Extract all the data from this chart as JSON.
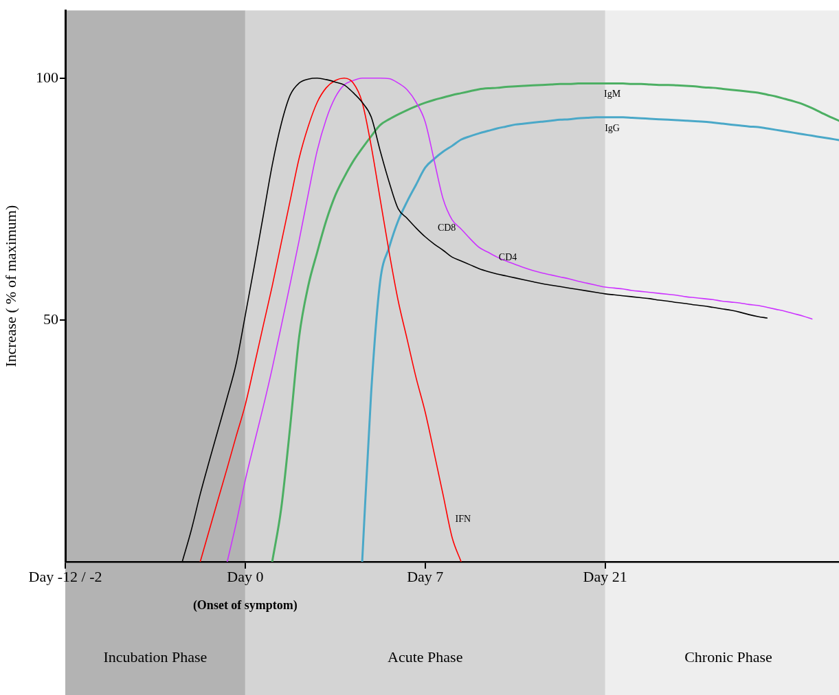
{
  "chart_data": {
    "type": "line",
    "ylabel": "Increase ( % of maximum)",
    "ylim": [
      0,
      114
    ],
    "yticks": [
      50,
      100
    ],
    "grid": false,
    "legend": false,
    "marker": "none",
    "line_style": "solid",
    "categories": [
      "Day -12 / -2",
      null,
      null,
      null,
      null,
      null,
      null,
      null,
      null,
      null,
      null,
      null,
      null,
      null,
      null,
      null,
      null,
      null,
      null,
      null,
      "Day 0",
      null,
      null,
      null,
      null,
      null,
      null,
      null,
      null,
      null,
      null,
      null,
      null,
      null,
      null,
      null,
      null,
      null,
      null,
      null,
      "Day 7",
      null,
      null,
      null,
      null,
      null,
      null,
      null,
      null,
      null,
      null,
      null,
      null,
      null,
      null,
      null,
      null,
      null,
      null,
      null,
      "Day 21",
      null,
      null,
      null,
      null,
      null,
      null,
      null,
      null,
      null,
      null,
      null,
      null,
      null,
      null,
      null,
      null,
      null,
      null,
      null,
      null,
      null,
      null,
      null,
      null,
      null,
      null
    ],
    "bands": [
      {
        "axis": "x",
        "from": "Day -12 / -2",
        "to": "Day 0",
        "label": "Incubation Phase",
        "color": "#b3b3b3"
      },
      {
        "axis": "x",
        "from": "Day 0",
        "to": "Day 21",
        "label": "Acute Phase",
        "color": "#d4d4d4"
      }
    ],
    "annotations": [
      "(Onset of symptom)",
      "CD8",
      "CD4",
      "IgM",
      "IgG",
      "IFN",
      "Chronic Phase"
    ],
    "series": [
      {
        "color": "#000000",
        "values": [
          null,
          null,
          null,
          null,
          null,
          null,
          null,
          null,
          null,
          null,
          null,
          null,
          null,
          0,
          6.5,
          14,
          20.8,
          27.4,
          34,
          41,
          50.9,
          61,
          71.5,
          82,
          90.5,
          96.5,
          99,
          99.8,
          100,
          99.7,
          99.2,
          98.6,
          97,
          95,
          92,
          85,
          78.5,
          73,
          71,
          69,
          67.2,
          65.7,
          64.4,
          63,
          62.2,
          61.4,
          60.6,
          60,
          59.5,
          59.1,
          58.7,
          58.3,
          57.9,
          57.5,
          57.2,
          56.9,
          56.6,
          56.3,
          56,
          55.7,
          55.4,
          55.2,
          55,
          54.8,
          54.6,
          54.4,
          54.1,
          53.9,
          53.6,
          53.4,
          53.1,
          52.9,
          52.6,
          52.3,
          52,
          51.6,
          51.1,
          50.7,
          50.4,
          null,
          null,
          null,
          null,
          null,
          null,
          null,
          null
        ]
      },
      {
        "color": "#ff0000",
        "values": [
          null,
          null,
          null,
          null,
          null,
          null,
          null,
          null,
          null,
          null,
          null,
          null,
          null,
          null,
          null,
          0,
          6.5,
          13,
          19.4,
          26,
          32.4,
          40.5,
          48.8,
          57,
          65.9,
          74.7,
          83.5,
          90,
          95,
          98,
          99.5,
          100,
          99,
          95,
          86,
          75,
          64,
          54,
          46,
          38,
          31,
          22.5,
          13.8,
          5,
          0,
          null,
          null,
          null,
          null,
          null,
          null,
          null,
          null,
          null,
          null,
          null,
          null,
          null,
          null,
          null,
          null,
          null,
          null,
          null,
          null,
          null,
          null,
          null,
          null,
          null,
          null,
          null,
          null,
          null,
          null,
          null,
          null,
          null,
          null,
          null,
          null,
          null,
          null,
          null,
          null,
          null,
          null
        ]
      },
      {
        "color": "#cc33ff",
        "values": [
          null,
          null,
          null,
          null,
          null,
          null,
          null,
          null,
          null,
          null,
          null,
          null,
          null,
          null,
          null,
          null,
          null,
          null,
          0,
          8,
          16.8,
          24.5,
          32,
          40,
          48.7,
          57.5,
          66.5,
          76,
          85,
          91.5,
          96,
          98.6,
          99.5,
          100,
          100,
          100,
          99.9,
          99,
          97.6,
          95,
          91,
          83,
          75,
          70.7,
          68.8,
          66.8,
          65,
          64,
          63,
          62.2,
          61.5,
          60.8,
          60.2,
          59.7,
          59.3,
          58.9,
          58.5,
          58,
          57.6,
          57.2,
          56.8,
          56.6,
          56.4,
          56.1,
          55.9,
          55.7,
          55.5,
          55.3,
          55.1,
          54.8,
          54.6,
          54.4,
          54.2,
          53.9,
          53.7,
          53.5,
          53.2,
          53,
          52.6,
          52.2,
          51.8,
          51.3,
          50.8,
          50.2,
          null,
          null,
          null
        ]
      },
      {
        "color": "#4caf63",
        "values": [
          null,
          null,
          null,
          null,
          null,
          null,
          null,
          null,
          null,
          null,
          null,
          null,
          null,
          null,
          null,
          null,
          null,
          null,
          null,
          null,
          null,
          null,
          null,
          0,
          11,
          28,
          46.6,
          57,
          64,
          70.5,
          75.7,
          79.5,
          82.8,
          85.5,
          88,
          90.3,
          91.5,
          92.5,
          93.4,
          94.2,
          94.9,
          95.5,
          96,
          96.5,
          96.9,
          97.3,
          97.7,
          97.9,
          98,
          98.2,
          98.3,
          98.4,
          98.5,
          98.6,
          98.7,
          98.8,
          98.8,
          98.9,
          98.9,
          98.9,
          98.9,
          98.9,
          98.9,
          98.8,
          98.8,
          98.7,
          98.6,
          98.6,
          98.5,
          98.4,
          98.3,
          98.1,
          98,
          97.8,
          97.6,
          97.4,
          97.2,
          97,
          96.6,
          96.2,
          95.7,
          95.2,
          94.6,
          93.8,
          92.9,
          92,
          91.2
        ]
      },
      {
        "color": "#4aa8c8",
        "values": [
          null,
          null,
          null,
          null,
          null,
          null,
          null,
          null,
          null,
          null,
          null,
          null,
          null,
          null,
          null,
          null,
          null,
          null,
          null,
          null,
          null,
          null,
          null,
          null,
          null,
          null,
          null,
          null,
          null,
          null,
          null,
          null,
          null,
          0,
          35,
          58,
          65,
          70.5,
          74.5,
          78,
          81.5,
          83.3,
          84.8,
          86,
          87.3,
          88,
          88.6,
          89.1,
          89.6,
          90,
          90.4,
          90.6,
          90.8,
          91,
          91.2,
          91.4,
          91.5,
          91.7,
          91.8,
          91.9,
          91.9,
          91.9,
          91.9,
          91.8,
          91.7,
          91.6,
          91.5,
          91.4,
          91.3,
          91.2,
          91.1,
          91,
          90.8,
          90.6,
          90.4,
          90.2,
          90,
          89.9,
          89.6,
          89.3,
          89,
          88.7,
          88.4,
          88.1,
          87.8,
          87.5,
          87.2
        ]
      }
    ]
  }
}
